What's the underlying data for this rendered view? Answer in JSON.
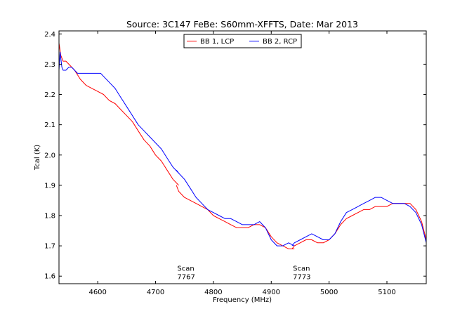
{
  "chart_data": {
    "type": "line",
    "title": "Source: 3C147 FeBe: S60mm-XFFTS, Date: Mar 2013",
    "xlabel": "Frequency (MHz)",
    "ylabel": "Tcal (K)",
    "xlim": [
      4533,
      5168
    ],
    "ylim": [
      1.575,
      2.41
    ],
    "xticks": [
      4600,
      4700,
      4800,
      4900,
      5000,
      5100
    ],
    "xtick_labels": [
      "4600",
      "4700",
      "4800",
      "4900",
      "5000",
      "5100"
    ],
    "yticks": [
      1.6,
      1.7,
      1.8,
      1.9,
      2.0,
      2.1,
      2.2,
      2.3,
      2.4
    ],
    "ytick_labels": [
      "1.6",
      "1.7",
      "1.8",
      "1.9",
      "2.0",
      "2.1",
      "2.2",
      "2.3",
      "2.4"
    ],
    "grid": false,
    "legend_position": "top-center",
    "series": [
      {
        "name": "BB 1, LCP",
        "color": "#ff0000",
        "segments": [
          {
            "x": [
              4533,
              4536,
              4540,
              4545,
              4550,
              4560,
              4570,
              4580,
              4590,
              4600,
              4610,
              4620,
              4630,
              4640,
              4650,
              4660,
              4670,
              4680,
              4690,
              4700,
              4710,
              4720,
              4730,
              4740
            ],
            "y": [
              2.37,
              2.33,
              2.31,
              2.31,
              2.3,
              2.28,
              2.25,
              2.23,
              2.22,
              2.21,
              2.2,
              2.18,
              2.17,
              2.15,
              2.13,
              2.11,
              2.08,
              2.05,
              2.03,
              2.0,
              1.98,
              1.95,
              1.92,
              1.9
            ]
          },
          {
            "x": [
              4736,
              4740,
              4750,
              4760,
              4770,
              4780,
              4790,
              4800,
              4810,
              4820,
              4830,
              4840,
              4850,
              4860,
              4870,
              4880,
              4890,
              4900,
              4910,
              4920,
              4930,
              4940
            ],
            "y": [
              1.9,
              1.88,
              1.86,
              1.85,
              1.84,
              1.83,
              1.82,
              1.8,
              1.79,
              1.78,
              1.77,
              1.76,
              1.76,
              1.76,
              1.77,
              1.77,
              1.76,
              1.73,
              1.71,
              1.7,
              1.69,
              1.69
            ]
          },
          {
            "x": [
              4936,
              4940,
              4950,
              4960,
              4970,
              4980,
              4990,
              5000,
              5010,
              5020,
              5030,
              5040,
              5050,
              5060,
              5070,
              5080,
              5090,
              5100,
              5110,
              5120,
              5130,
              5140,
              5150,
              5160,
              5168
            ],
            "y": [
              1.69,
              1.7,
              1.71,
              1.72,
              1.72,
              1.71,
              1.71,
              1.72,
              1.74,
              1.77,
              1.79,
              1.8,
              1.81,
              1.82,
              1.82,
              1.83,
              1.83,
              1.83,
              1.84,
              1.84,
              1.84,
              1.84,
              1.82,
              1.78,
              1.72
            ]
          }
        ]
      },
      {
        "name": "BB 2, RCP",
        "color": "#0000ff",
        "segments": [
          {
            "x": [
              4533,
              4535,
              4538,
              4540,
              4545,
              4550,
              4555,
              4560,
              4565,
              4570,
              4580,
              4590,
              4600,
              4605,
              4610,
              4620,
              4630,
              4640,
              4650,
              4660,
              4670,
              4680,
              4690,
              4700,
              4710,
              4720,
              4730,
              4740
            ],
            "y": [
              2.28,
              2.34,
              2.29,
              2.28,
              2.28,
              2.29,
              2.29,
              2.28,
              2.27,
              2.27,
              2.27,
              2.27,
              2.27,
              2.27,
              2.26,
              2.24,
              2.22,
              2.19,
              2.16,
              2.13,
              2.1,
              2.08,
              2.06,
              2.04,
              2.02,
              1.99,
              1.96,
              1.94
            ]
          },
          {
            "x": [
              4736,
              4740,
              4750,
              4760,
              4770,
              4780,
              4790,
              4800,
              4810,
              4820,
              4830,
              4840,
              4850,
              4860,
              4870,
              4880,
              4890,
              4900,
              4910,
              4920,
              4930,
              4940
            ],
            "y": [
              1.95,
              1.94,
              1.92,
              1.89,
              1.86,
              1.84,
              1.82,
              1.81,
              1.8,
              1.79,
              1.79,
              1.78,
              1.77,
              1.77,
              1.77,
              1.78,
              1.76,
              1.72,
              1.7,
              1.7,
              1.71,
              1.7
            ]
          },
          {
            "x": [
              4936,
              4940,
              4950,
              4960,
              4970,
              4980,
              4990,
              5000,
              5010,
              5020,
              5030,
              5040,
              5050,
              5060,
              5070,
              5080,
              5090,
              5100,
              5110,
              5120,
              5130,
              5140,
              5150,
              5160,
              5168
            ],
            "y": [
              1.7,
              1.71,
              1.72,
              1.73,
              1.74,
              1.73,
              1.72,
              1.72,
              1.74,
              1.78,
              1.81,
              1.82,
              1.83,
              1.84,
              1.85,
              1.86,
              1.86,
              1.85,
              1.84,
              1.84,
              1.84,
              1.83,
              1.81,
              1.77,
              1.71
            ]
          }
        ]
      }
    ],
    "annotations": [
      {
        "lines": [
          "Scan",
          "7767"
        ],
        "x": 4752,
        "y": 1.618
      },
      {
        "lines": [
          "Scan",
          "7773"
        ],
        "x": 4952,
        "y": 1.618
      }
    ]
  }
}
